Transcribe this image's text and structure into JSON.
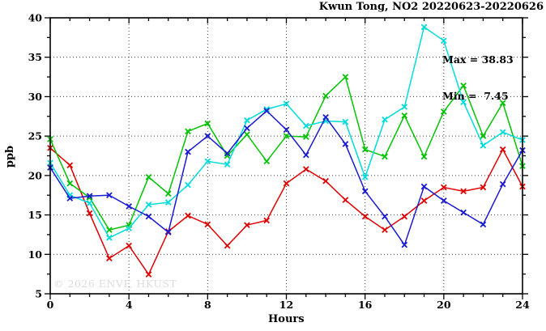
{
  "title": "Kwun Tong, NO2 20220623-20220626",
  "annotations": {
    "max": 38.83,
    "min": 7.45,
    "max_label": "Max = 38.83",
    "min_label": "Min =  7.45"
  },
  "watermark": "© 2026 ENVF, HKUST",
  "chart_data": {
    "type": "line",
    "title": "Kwun Tong, NO2 20220623-20220626",
    "xlabel": "Hours",
    "ylabel": "ppb",
    "xlim": [
      0,
      24
    ],
    "ylim": [
      5,
      40
    ],
    "x_ticks_major": [
      0,
      4,
      8,
      12,
      16,
      20,
      24
    ],
    "x_minor_step": 1,
    "y_ticks_major": [
      5,
      10,
      15,
      20,
      25,
      30,
      35,
      40
    ],
    "y_minor_step": 2.5,
    "grid": "dotted",
    "grid_color": "#3a3a3a",
    "marker": "x",
    "x": [
      0,
      1,
      2,
      3,
      4,
      5,
      6,
      7,
      8,
      9,
      10,
      11,
      12,
      13,
      14,
      15,
      16,
      17,
      18,
      19,
      20,
      21,
      22,
      23,
      24
    ],
    "series": [
      {
        "name": "red",
        "color": "#e00000",
        "values": [
          23.5,
          21.3,
          15.2,
          9.5,
          11.1,
          7.45,
          12.9,
          14.9,
          13.8,
          11.1,
          13.7,
          14.3,
          19.0,
          20.8,
          19.3,
          16.9,
          14.8,
          13.1,
          14.8,
          16.8,
          18.5,
          18.0,
          18.5,
          23.3,
          18.6
        ]
      },
      {
        "name": "green",
        "color": "#00c400",
        "values": [
          24.6,
          19.0,
          17.2,
          13.1,
          13.7,
          19.8,
          17.7,
          25.6,
          26.6,
          22.5,
          25.2,
          21.8,
          25.0,
          24.9,
          30.1,
          32.5,
          23.3,
          22.4,
          27.6,
          22.4,
          28.1,
          31.4,
          25.0,
          29.2,
          21.2
        ]
      },
      {
        "name": "cyan",
        "color": "#00dcdc",
        "values": [
          21.6,
          17.5,
          16.5,
          12.1,
          13.3,
          16.3,
          16.6,
          18.8,
          21.8,
          21.4,
          27.0,
          28.4,
          29.1,
          26.3,
          26.9,
          26.8,
          19.8,
          27.1,
          28.7,
          38.83,
          37.1,
          29.3,
          23.8,
          25.5,
          24.5
        ]
      },
      {
        "name": "blue",
        "color": "#1a1ad2",
        "values": [
          21.0,
          17.1,
          17.4,
          17.5,
          16.1,
          14.8,
          12.8,
          23.0,
          25.0,
          22.8,
          26.0,
          28.2,
          25.8,
          22.6,
          27.4,
          24.0,
          18.0,
          14.8,
          11.2,
          18.6,
          16.8,
          15.3,
          13.8,
          18.9,
          23.2
        ]
      }
    ]
  }
}
